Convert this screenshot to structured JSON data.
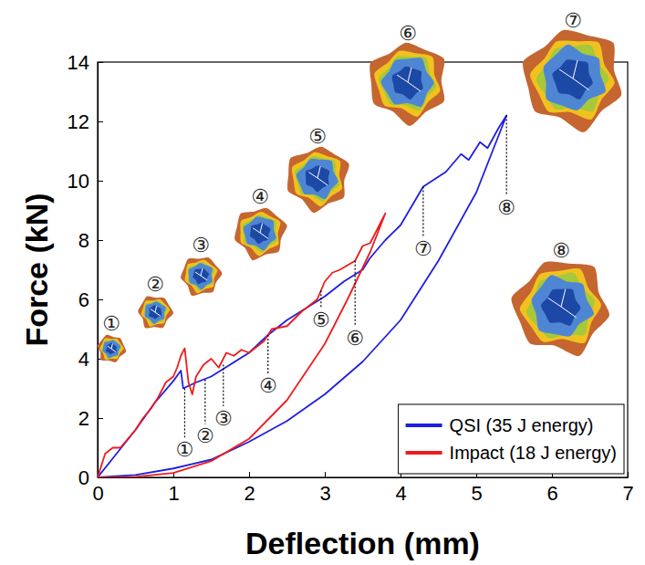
{
  "chart_data": {
    "type": "line",
    "x_label": "Deflection (mm)",
    "y_label": "Force (kN)",
    "xlim": [
      0,
      7
    ],
    "ylim": [
      0,
      14
    ],
    "xticks": [
      0,
      1,
      2,
      3,
      4,
      5,
      6,
      7
    ],
    "yticks": [
      0,
      2,
      4,
      6,
      8,
      10,
      12,
      14
    ],
    "grid": false,
    "legend": "lower right",
    "series": [
      {
        "name": "QSI (35 J energy)",
        "color": "#1f1fe0",
        "x": [
          0,
          0.25,
          0.5,
          0.75,
          1.0,
          1.1,
          1.13,
          1.3,
          1.5,
          1.75,
          2.0,
          2.25,
          2.5,
          2.75,
          3.0,
          3.25,
          3.5,
          3.6,
          3.8,
          4.0,
          4.3,
          4.6,
          4.8,
          4.9,
          5.05,
          5.15,
          5.3,
          5.4,
          5.0,
          4.5,
          4.0,
          3.5,
          3.0,
          2.5,
          2.0,
          1.5,
          1.0,
          0.5,
          0
        ],
        "values": [
          0,
          0.8,
          1.6,
          2.5,
          3.25,
          3.6,
          3.0,
          3.2,
          3.4,
          3.8,
          4.2,
          4.8,
          5.3,
          5.7,
          6.1,
          6.6,
          7.0,
          7.4,
          8.0,
          8.5,
          9.8,
          10.3,
          10.9,
          10.7,
          11.3,
          11.1,
          11.8,
          12.2,
          9.6,
          7.3,
          5.3,
          3.9,
          2.8,
          1.9,
          1.2,
          0.6,
          0.3,
          0.08,
          0
        ]
      },
      {
        "name": "Impact (18 J energy)",
        "color": "#ee1c1c",
        "x": [
          0,
          0.1,
          0.2,
          0.3,
          0.4,
          0.5,
          0.6,
          0.7,
          0.8,
          0.9,
          1.0,
          1.05,
          1.1,
          1.15,
          1.2,
          1.25,
          1.3,
          1.4,
          1.5,
          1.6,
          1.7,
          1.8,
          1.9,
          2.0,
          2.2,
          2.3,
          2.5,
          2.7,
          2.9,
          3.0,
          3.1,
          3.2,
          3.4,
          3.5,
          3.6,
          3.7,
          3.8,
          3.6,
          3.3,
          3.0,
          2.5,
          2.0,
          1.5,
          1.0,
          0.5,
          0.3,
          0
        ],
        "values": [
          0,
          0.8,
          1.0,
          1.0,
          1.3,
          1.6,
          2.0,
          2.3,
          2.7,
          3.2,
          3.4,
          3.7,
          4.1,
          4.35,
          3.2,
          2.8,
          3.4,
          3.8,
          4.0,
          3.7,
          4.2,
          4.1,
          4.3,
          4.2,
          4.6,
          5.0,
          5.1,
          5.6,
          6.0,
          6.6,
          6.9,
          7.0,
          7.3,
          7.8,
          7.9,
          8.4,
          8.9,
          7.6,
          6.0,
          4.5,
          2.6,
          1.3,
          0.55,
          0.15,
          0.02,
          0,
          0
        ]
      }
    ],
    "annotations": [
      {
        "text": "①",
        "x": 1.15,
        "y_from": 3.0,
        "y": 0.95
      },
      {
        "text": "②",
        "x": 1.42,
        "y_from": 3.3,
        "y": 1.4
      },
      {
        "text": "③",
        "x": 1.66,
        "y_from": 3.8,
        "y": 2.0
      },
      {
        "text": "④",
        "x": 2.25,
        "y_from": 4.8,
        "y": 3.1
      },
      {
        "text": "⑤",
        "x": 2.95,
        "y_from": 6.3,
        "y": 5.3
      },
      {
        "text": "⑥",
        "x": 3.4,
        "y_from": 7.3,
        "y": 4.7
      },
      {
        "text": "⑦",
        "x": 4.3,
        "y_from": 9.8,
        "y": 7.7
      },
      {
        "text": "⑧",
        "x": 5.4,
        "y_from": 12.2,
        "y": 9.1
      }
    ],
    "inset_labels": [
      "①",
      "②",
      "③",
      "④",
      "⑤",
      "⑥",
      "⑦",
      "⑧"
    ]
  }
}
